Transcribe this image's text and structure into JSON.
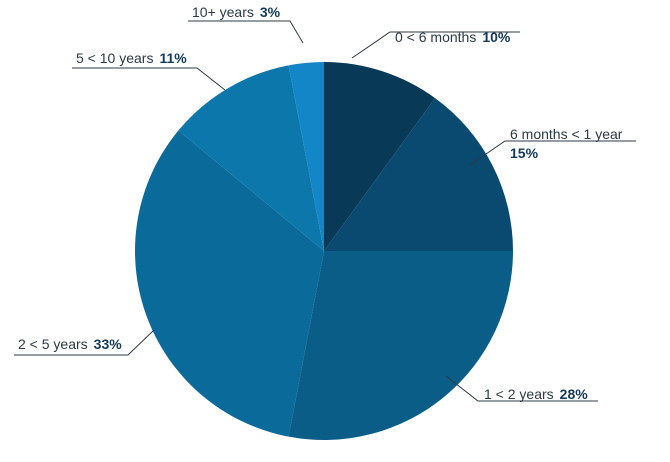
{
  "chart_data": {
    "type": "pie",
    "title": "",
    "legend": "none",
    "slices": [
      {
        "label": "0 < 6 months",
        "value": 10,
        "value_label": "10%",
        "color": "#083a57"
      },
      {
        "label": "6 months < 1 year",
        "value": 15,
        "value_label": "15%",
        "color": "#0b4a70"
      },
      {
        "label": "1 < 2 years",
        "value": 28,
        "value_label": "28%",
        "color": "#095d86"
      },
      {
        "label": "2 < 5 years",
        "value": 33,
        "value_label": "33%",
        "color": "#0a6a9a"
      },
      {
        "label": "5 < 10 years",
        "value": 11,
        "value_label": "11%",
        "color": "#0b77ab"
      },
      {
        "label": "10+ years",
        "value": 3,
        "value_label": "3%",
        "color": "#1386c7"
      }
    ]
  }
}
